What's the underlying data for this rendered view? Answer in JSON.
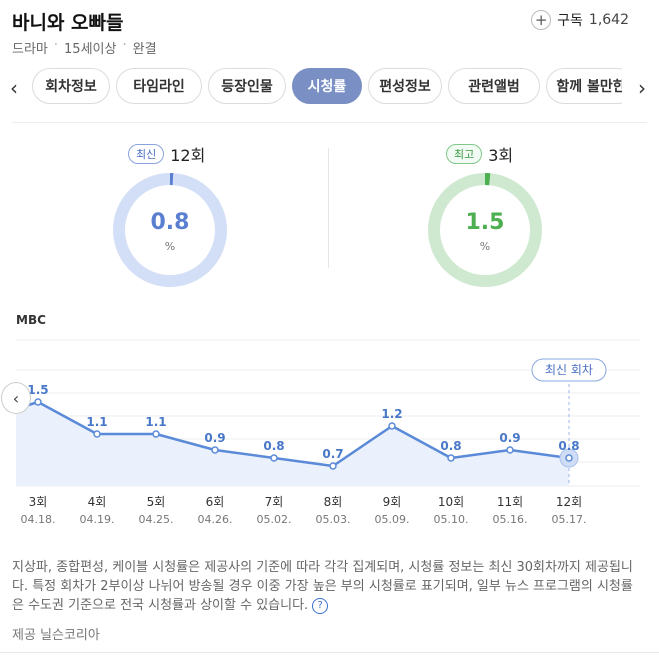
{
  "header": {
    "title": "바니와 오빠들",
    "meta": [
      "드라마",
      "15세이상",
      "완결"
    ],
    "subscribe_label": "구독",
    "subscribe_count": "1,642"
  },
  "tabs": [
    {
      "label": "회차정보",
      "active": false
    },
    {
      "label": "타임라인",
      "active": false
    },
    {
      "label": "등장인물",
      "active": false
    },
    {
      "label": "시청률",
      "active": true
    },
    {
      "label": "편성정보",
      "active": false
    },
    {
      "label": "관련앨범",
      "active": false
    },
    {
      "label": "함께 볼만한",
      "active": false
    }
  ],
  "latest": {
    "badge": "최신",
    "episode": "12회",
    "value": "0.8",
    "unit": "%",
    "fraction": 0.008,
    "color": "#5b7fd0",
    "track_color": "#d3dff6"
  },
  "highest": {
    "badge": "최고",
    "episode": "3회",
    "value": "1.5",
    "unit": "%",
    "fraction": 0.015,
    "color": "#4caf50",
    "track_color": "#cfe9d1"
  },
  "station": "MBC",
  "chart_data": {
    "type": "line",
    "categories": [
      "3회",
      "4회",
      "5회",
      "6회",
      "7회",
      "8회",
      "9회",
      "10회",
      "11회",
      "12회"
    ],
    "dates": [
      "04.18.",
      "04.19.",
      "04.25.",
      "04.26.",
      "05.02.",
      "05.03.",
      "05.09.",
      "05.10.",
      "05.16.",
      "05.17."
    ],
    "values": [
      1.5,
      1.1,
      1.1,
      0.9,
      0.8,
      0.7,
      1.2,
      0.8,
      0.9,
      0.8
    ],
    "latest_label": "최신 회차",
    "color": "#5b8ad8",
    "fill_color": "#eaf1fc"
  },
  "footnote": "지상파, 종합편성, 케이블 시청률은 제공사의 기준에 따라 각각 집계되며, 시청률 정보는 최신 30회차까지 제공됩니다. 특정 회차가 2부이상 나뉘어 방송될 경우 이중 가장 높은 부의 시청률로 표기되며, 일부 뉴스 프로그램의 시청률은 수도권 기준으로 전국 시청률과 상이할 수 있습니다.",
  "provider": "제공 닐슨코리아"
}
